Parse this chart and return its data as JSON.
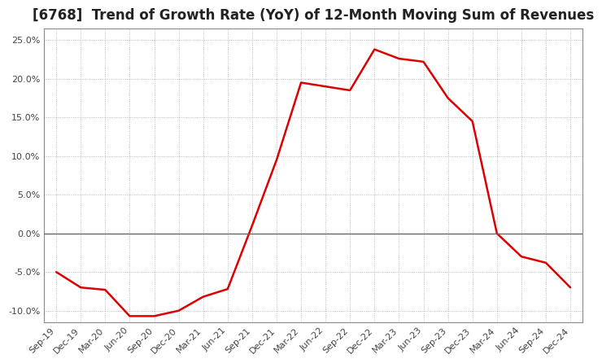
{
  "title": "[6768]  Trend of Growth Rate (YoY) of 12-Month Moving Sum of Revenues",
  "title_fontsize": 12,
  "line_color": "#dd0000",
  "background_color": "#ffffff",
  "plot_bg_color": "#ffffff",
  "grid_color": "#aaaaaa",
  "ylim": [
    -0.115,
    0.265
  ],
  "yticks": [
    -0.1,
    -0.05,
    0.0,
    0.05,
    0.1,
    0.15,
    0.2,
    0.25
  ],
  "x_labels": [
    "Sep-19",
    "Dec-19",
    "Mar-20",
    "Jun-20",
    "Sep-20",
    "Dec-20",
    "Mar-21",
    "Jun-21",
    "Sep-21",
    "Dec-21",
    "Mar-22",
    "Jun-22",
    "Sep-22",
    "Dec-22",
    "Mar-23",
    "Jun-23",
    "Sep-23",
    "Dec-23",
    "Mar-24",
    "Jun-24",
    "Sep-24",
    "Dec-24"
  ],
  "values": [
    -0.05,
    -0.07,
    -0.073,
    -0.107,
    -0.107,
    -0.1,
    -0.082,
    -0.072,
    0.01,
    0.095,
    0.195,
    0.19,
    0.185,
    0.238,
    0.226,
    0.222,
    0.175,
    0.145,
    0.0,
    -0.03,
    -0.038,
    -0.07
  ]
}
